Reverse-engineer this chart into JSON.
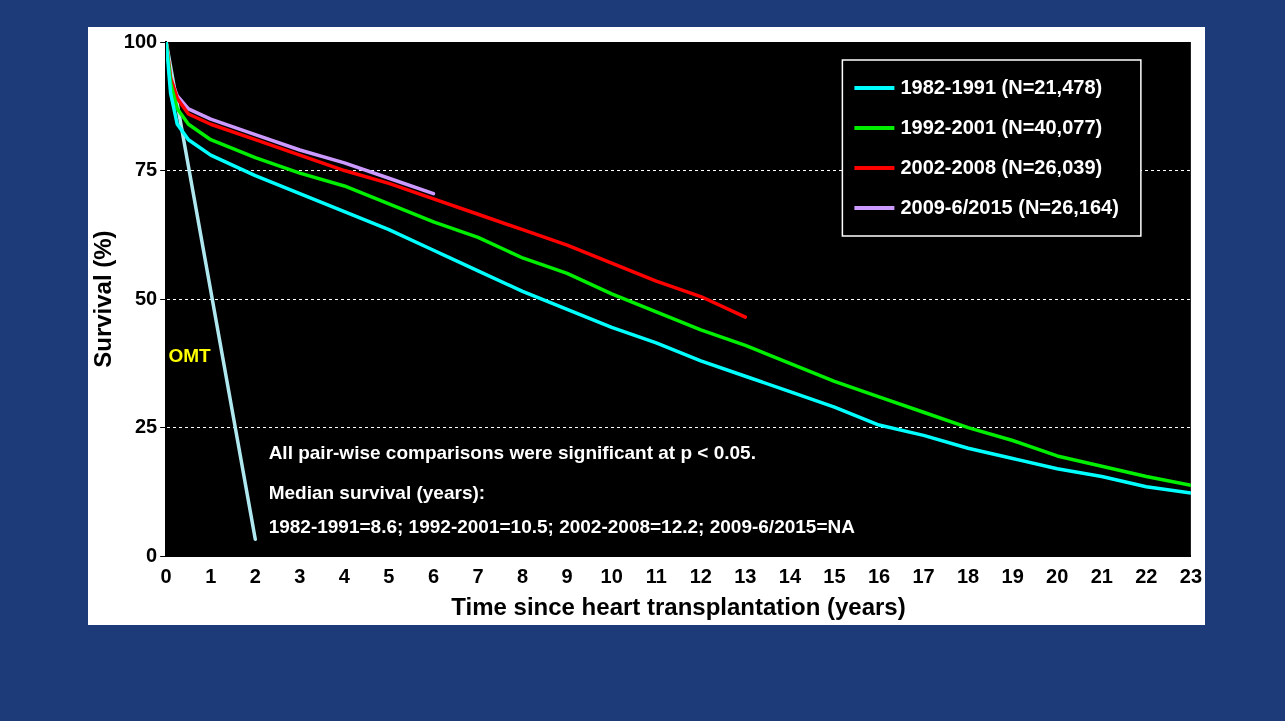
{
  "chart_data": {
    "type": "line",
    "xlabel": "Time since heart transplantation (years)",
    "ylabel": "Survival (%)",
    "xlim": [
      0,
      23
    ],
    "xticks": [
      0,
      1,
      2,
      3,
      4,
      5,
      6,
      7,
      8,
      9,
      10,
      11,
      12,
      13,
      14,
      15,
      16,
      17,
      18,
      19,
      20,
      21,
      22,
      23
    ],
    "ylim": [
      0,
      100
    ],
    "yticks": [
      0,
      25,
      50,
      75,
      100
    ],
    "grid": "y",
    "legend": "top right",
    "marker": "none",
    "line_style": "solid",
    "series": [
      {
        "name": "1982-1991 (N=21,478)",
        "color": "#00ffff",
        "x": [
          0,
          0.1,
          0.25,
          0.5,
          1,
          2,
          3,
          4,
          5,
          6,
          7,
          8,
          9,
          10,
          11,
          12,
          13,
          14,
          15,
          16,
          17,
          18,
          19,
          20,
          21,
          22,
          23
        ],
        "values": [
          100,
          90,
          84,
          81,
          78,
          74,
          70.5,
          67,
          63.5,
          59.5,
          55.5,
          51.5,
          48,
          44.5,
          41.5,
          38,
          35,
          32,
          29,
          25.5,
          23.5,
          21,
          19,
          17,
          15.5,
          13.5,
          12.3
        ]
      },
      {
        "name": "1992-2001 (N=40,077)",
        "color": "#00ee00",
        "x": [
          0,
          0.1,
          0.25,
          0.5,
          1,
          2,
          3,
          4,
          5,
          6,
          7,
          8,
          9,
          10,
          11,
          12,
          13,
          14,
          15,
          16,
          17,
          18,
          19,
          20,
          21,
          22,
          23
        ],
        "values": [
          100,
          92,
          87,
          84,
          81,
          77.5,
          74.5,
          72,
          68.5,
          65,
          62,
          58,
          55,
          51,
          47.5,
          44,
          41,
          37.5,
          34,
          31,
          28,
          25,
          22.5,
          19.5,
          17.5,
          15.5,
          13.8
        ]
      },
      {
        "name": "2002-2008 (N=26,039)",
        "color": "#ff0000",
        "x": [
          0,
          0.1,
          0.25,
          0.5,
          1,
          2,
          3,
          4,
          5,
          6,
          7,
          8,
          9,
          10,
          11,
          12,
          13
        ],
        "values": [
          100,
          93,
          89,
          86,
          84,
          81,
          78,
          75,
          72.5,
          69.5,
          66.5,
          63.5,
          60.5,
          57,
          53.5,
          50.5,
          46.5
        ]
      },
      {
        "name": "2009-6/2015 (N=26,164)",
        "color": "#cc99ff",
        "x": [
          0,
          0.1,
          0.25,
          0.5,
          1,
          2,
          3,
          4,
          5,
          6
        ],
        "values": [
          100,
          93,
          89.5,
          87,
          85,
          82,
          79,
          76.5,
          73.5,
          70.5
        ]
      },
      {
        "name": "OMT",
        "color": "#b0e8f0",
        "x": [
          0,
          2
        ],
        "values": [
          100,
          3.3
        ]
      }
    ],
    "annotations": [
      "All pair-wise comparisons were significant at p < 0.05.",
      "Median survival (years):",
      "1982-1991=8.6; 1992-2001=10.5; 2002-2008=12.2; 2009-6/2015=NA"
    ]
  }
}
